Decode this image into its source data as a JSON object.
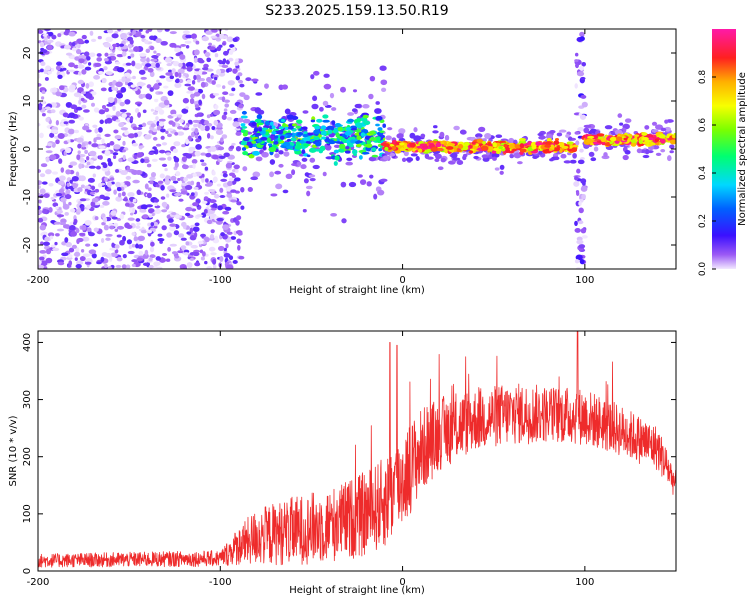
{
  "title": "S233.2025.159.13.50.R19",
  "colors": {
    "snr_line": "#ee2b2b",
    "scatter_low": "#c9a8f2",
    "scatter_high": "#5b14e0"
  },
  "chart_data": [
    {
      "type": "heatmap",
      "xlabel": "Height of straight line (km)",
      "ylabel": "Frequency (Hz)",
      "xlim": [
        -200,
        150
      ],
      "ylim": [
        -25,
        25
      ],
      "xticks": [
        -200,
        -100,
        0,
        100
      ],
      "yticks": [
        -20,
        -10,
        0,
        10,
        20
      ],
      "grid": false,
      "colorbar": {
        "label": "Normalized spectral amplitude",
        "range": [
          0,
          1
        ],
        "ticks": [
          0.0,
          0.2,
          0.4,
          0.6,
          0.8
        ],
        "colormap": "rainbow (violet to red to magenta)"
      },
      "features": [
        {
          "x_range": [
            -200,
            -88
          ],
          "f_range": [
            -25,
            25
          ],
          "amplitude": [
            0.0,
            0.12
          ]
        },
        {
          "x_range": [
            -88,
            -10
          ],
          "f_center": 2.5,
          "f_spread": 4,
          "amplitude": [
            0.1,
            0.6
          ]
        },
        {
          "x_range": [
            -10,
            95
          ],
          "f_center": 0.5,
          "f_spread": 1,
          "amplitude": [
            0.6,
            1.0
          ]
        },
        {
          "x_range": [
            95,
            100
          ],
          "f_range": [
            -25,
            25
          ],
          "amplitude": [
            0.0,
            0.15
          ]
        },
        {
          "x_range": [
            100,
            150
          ],
          "f_center": 2.0,
          "f_spread": 1,
          "amplitude": [
            0.6,
            1.0
          ]
        }
      ]
    },
    {
      "type": "line",
      "xlabel": "Height of straight line (km)",
      "ylabel": "SNR (10 * v/v)",
      "xlim": [
        -200,
        150
      ],
      "ylim": [
        0,
        420
      ],
      "xticks": [
        -200,
        -100,
        0,
        100
      ],
      "yticks": [
        0,
        100,
        200,
        300,
        400
      ],
      "grid": false,
      "envelope": {
        "x": [
          -200,
          -100,
          -92,
          -80,
          -60,
          -40,
          -20,
          -10,
          0,
          10,
          20,
          40,
          60,
          80,
          100,
          120,
          140,
          150
        ],
        "mean": [
          18,
          22,
          40,
          60,
          70,
          80,
          100,
          120,
          160,
          210,
          240,
          265,
          275,
          275,
          270,
          245,
          215,
          150
        ],
        "amp": [
          12,
          14,
          30,
          50,
          60,
          65,
          75,
          80,
          85,
          75,
          65,
          55,
          55,
          50,
          50,
          45,
          40,
          25
        ]
      },
      "peaks": [
        {
          "x": -7,
          "y": 400
        },
        {
          "x": -3,
          "y": 395
        },
        {
          "x": 96,
          "y": 420
        }
      ]
    }
  ]
}
